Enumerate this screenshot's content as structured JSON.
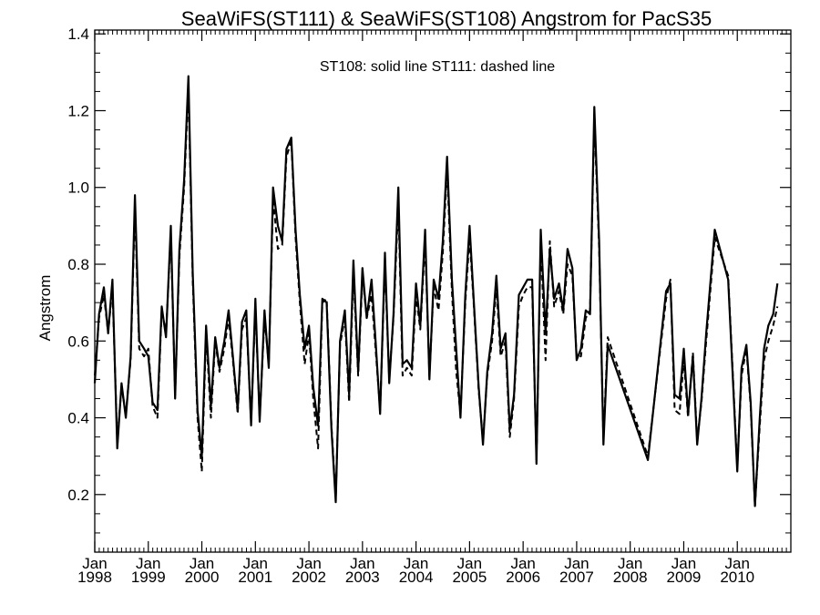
{
  "chart_data": {
    "type": "line",
    "title": "SeaWiFS(ST111) & SeaWiFS(ST108)  Angstrom for PacS35",
    "legend_text": "ST108: solid line   ST111: dashed line",
    "xlabel": "",
    "ylabel": "Angstrom",
    "ylim": [
      0.05,
      1.41
    ],
    "xlim": [
      1998.0,
      2011.0
    ],
    "yticks": [
      "0.2",
      "0.4",
      "0.6",
      "0.8",
      "1.0",
      "1.2",
      "1.4"
    ],
    "xticks": [
      {
        "x": 1998,
        "month": "Jan",
        "year": "1998"
      },
      {
        "x": 1999,
        "month": "Jan",
        "year": "1999"
      },
      {
        "x": 2000,
        "month": "Jan",
        "year": "2000"
      },
      {
        "x": 2001,
        "month": "Jan",
        "year": "2001"
      },
      {
        "x": 2002,
        "month": "Jan",
        "year": "2002"
      },
      {
        "x": 2003,
        "month": "Jan",
        "year": "2003"
      },
      {
        "x": 2004,
        "month": "Jan",
        "year": "2004"
      },
      {
        "x": 2005,
        "month": "Jan",
        "year": "2005"
      },
      {
        "x": 2006,
        "month": "Jan",
        "year": "2006"
      },
      {
        "x": 2007,
        "month": "Jan",
        "year": "2007"
      },
      {
        "x": 2008,
        "month": "Jan",
        "year": "2008"
      },
      {
        "x": 2009,
        "month": "Jan",
        "year": "2009"
      },
      {
        "x": 2010,
        "month": "Jan",
        "year": "2010"
      }
    ],
    "series": [
      {
        "name": "ST108",
        "style": "solid",
        "points": [
          [
            1998.0,
            0.49
          ],
          [
            1998.08,
            0.67
          ],
          [
            1998.17,
            0.74
          ],
          [
            1998.25,
            0.62
          ],
          [
            1998.33,
            0.76
          ],
          [
            1998.42,
            0.32
          ],
          [
            1998.5,
            0.49
          ],
          [
            1998.58,
            0.4
          ],
          [
            1998.67,
            0.56
          ],
          [
            1998.75,
            0.98
          ],
          [
            1998.83,
            0.6
          ],
          [
            1998.92,
            0.58
          ],
          [
            1999.0,
            0.56
          ],
          [
            1999.08,
            0.44
          ],
          [
            1999.17,
            0.42
          ],
          [
            1999.25,
            0.69
          ],
          [
            1999.33,
            0.61
          ],
          [
            1999.42,
            0.9
          ],
          [
            1999.5,
            0.45
          ],
          [
            1999.58,
            0.84
          ],
          [
            1999.67,
            1.02
          ],
          [
            1999.75,
            1.29
          ],
          [
            1999.83,
            0.78
          ],
          [
            1999.92,
            0.42
          ],
          [
            2000.0,
            0.3
          ],
          [
            2000.08,
            0.64
          ],
          [
            2000.17,
            0.43
          ],
          [
            2000.25,
            0.61
          ],
          [
            2000.33,
            0.53
          ],
          [
            2000.42,
            0.6
          ],
          [
            2000.5,
            0.68
          ],
          [
            2000.58,
            0.56
          ],
          [
            2000.67,
            0.42
          ],
          [
            2000.75,
            0.65
          ],
          [
            2000.83,
            0.68
          ],
          [
            2000.92,
            0.38
          ],
          [
            2001.0,
            0.71
          ],
          [
            2001.08,
            0.39
          ],
          [
            2001.17,
            0.68
          ],
          [
            2001.25,
            0.53
          ],
          [
            2001.33,
            1.0
          ],
          [
            2001.42,
            0.9
          ],
          [
            2001.5,
            0.86
          ],
          [
            2001.58,
            1.1
          ],
          [
            2001.67,
            1.13
          ],
          [
            2001.75,
            0.89
          ],
          [
            2001.83,
            0.72
          ],
          [
            2001.92,
            0.58
          ],
          [
            2002.0,
            0.64
          ],
          [
            2002.08,
            0.48
          ],
          [
            2002.17,
            0.38
          ],
          [
            2002.25,
            0.71
          ],
          [
            2002.33,
            0.7
          ],
          [
            2002.42,
            0.37
          ],
          [
            2002.5,
            0.18
          ],
          [
            2002.58,
            0.6
          ],
          [
            2002.67,
            0.68
          ],
          [
            2002.75,
            0.46
          ],
          [
            2002.83,
            0.81
          ],
          [
            2002.92,
            0.52
          ],
          [
            2003.0,
            0.79
          ],
          [
            2003.08,
            0.66
          ],
          [
            2003.17,
            0.76
          ],
          [
            2003.25,
            0.59
          ],
          [
            2003.33,
            0.41
          ],
          [
            2003.42,
            0.83
          ],
          [
            2003.5,
            0.49
          ],
          [
            2003.58,
            0.67
          ],
          [
            2003.67,
            1.0
          ],
          [
            2003.75,
            0.54
          ],
          [
            2003.83,
            0.55
          ],
          [
            2003.92,
            0.53
          ],
          [
            2004.0,
            0.75
          ],
          [
            2004.08,
            0.64
          ],
          [
            2004.17,
            0.89
          ],
          [
            2004.25,
            0.5
          ],
          [
            2004.33,
            0.76
          ],
          [
            2004.42,
            0.71
          ],
          [
            2004.5,
            0.86
          ],
          [
            2004.58,
            1.08
          ],
          [
            2004.67,
            0.76
          ],
          [
            2004.75,
            0.58
          ],
          [
            2004.83,
            0.4
          ],
          [
            2004.92,
            0.72
          ],
          [
            2005.0,
            0.9
          ],
          [
            2005.08,
            0.7
          ],
          [
            2005.17,
            0.48
          ],
          [
            2005.25,
            0.33
          ],
          [
            2005.33,
            0.52
          ],
          [
            2005.42,
            0.62
          ],
          [
            2005.5,
            0.77
          ],
          [
            2005.58,
            0.58
          ],
          [
            2005.67,
            0.62
          ],
          [
            2005.75,
            0.37
          ],
          [
            2005.83,
            0.46
          ],
          [
            2005.92,
            0.72
          ],
          [
            2006.0,
            0.74
          ],
          [
            2006.08,
            0.76
          ],
          [
            2006.17,
            0.76
          ],
          [
            2006.25,
            0.28
          ],
          [
            2006.33,
            0.89
          ],
          [
            2006.42,
            0.62
          ],
          [
            2006.5,
            0.84
          ],
          [
            2006.58,
            0.71
          ],
          [
            2006.67,
            0.75
          ],
          [
            2006.75,
            0.68
          ],
          [
            2006.83,
            0.84
          ],
          [
            2006.92,
            0.79
          ],
          [
            2007.0,
            0.55
          ],
          [
            2007.08,
            0.58
          ],
          [
            2007.17,
            0.68
          ],
          [
            2007.25,
            0.67
          ],
          [
            2007.33,
            1.21
          ],
          [
            2007.42,
            0.86
          ],
          [
            2007.5,
            0.33
          ],
          [
            2007.58,
            0.59
          ],
          [
            2008.33,
            0.29
          ],
          [
            2008.67,
            0.73
          ],
          [
            2008.75,
            0.75
          ],
          [
            2008.83,
            0.46
          ],
          [
            2008.92,
            0.45
          ],
          [
            2009.0,
            0.58
          ],
          [
            2009.08,
            0.41
          ],
          [
            2009.17,
            0.56
          ],
          [
            2009.25,
            0.33
          ],
          [
            2009.33,
            0.45
          ],
          [
            2009.42,
            0.62
          ],
          [
            2009.58,
            0.89
          ],
          [
            2009.83,
            0.76
          ],
          [
            2010.0,
            0.26
          ],
          [
            2010.08,
            0.53
          ],
          [
            2010.17,
            0.59
          ],
          [
            2010.25,
            0.44
          ],
          [
            2010.33,
            0.17
          ],
          [
            2010.42,
            0.4
          ],
          [
            2010.5,
            0.58
          ],
          [
            2010.58,
            0.64
          ],
          [
            2010.67,
            0.67
          ],
          [
            2010.75,
            0.75
          ]
        ]
      },
      {
        "name": "ST111",
        "style": "dashed",
        "points": [
          [
            1998.0,
            0.51
          ],
          [
            1998.08,
            0.66
          ],
          [
            1998.17,
            0.72
          ],
          [
            1998.25,
            0.62
          ],
          [
            1998.33,
            0.74
          ],
          [
            1998.42,
            0.34
          ],
          [
            1998.5,
            0.48
          ],
          [
            1998.58,
            0.41
          ],
          [
            1998.67,
            0.55
          ],
          [
            1998.75,
            0.95
          ],
          [
            1998.83,
            0.58
          ],
          [
            1998.92,
            0.56
          ],
          [
            1999.0,
            0.58
          ],
          [
            1999.08,
            0.43
          ],
          [
            1999.17,
            0.4
          ],
          [
            1999.25,
            0.68
          ],
          [
            1999.33,
            0.62
          ],
          [
            1999.42,
            0.88
          ],
          [
            1999.5,
            0.46
          ],
          [
            1999.58,
            0.82
          ],
          [
            1999.67,
            1.0
          ],
          [
            1999.75,
            1.26
          ],
          [
            1999.83,
            0.76
          ],
          [
            1999.92,
            0.4
          ],
          [
            2000.0,
            0.26
          ],
          [
            2000.08,
            0.62
          ],
          [
            2000.17,
            0.4
          ],
          [
            2000.25,
            0.6
          ],
          [
            2000.33,
            0.52
          ],
          [
            2000.42,
            0.58
          ],
          [
            2000.5,
            0.66
          ],
          [
            2000.58,
            0.55
          ],
          [
            2000.67,
            0.41
          ],
          [
            2000.75,
            0.63
          ],
          [
            2000.83,
            0.66
          ],
          [
            2000.92,
            0.39
          ],
          [
            2001.0,
            0.69
          ],
          [
            2001.08,
            0.4
          ],
          [
            2001.17,
            0.66
          ],
          [
            2001.25,
            0.54
          ],
          [
            2001.33,
            0.97
          ],
          [
            2001.42,
            0.84
          ],
          [
            2001.5,
            0.85
          ],
          [
            2001.58,
            1.08
          ],
          [
            2001.67,
            1.12
          ],
          [
            2001.75,
            0.87
          ],
          [
            2001.83,
            0.7
          ],
          [
            2001.92,
            0.54
          ],
          [
            2002.0,
            0.62
          ],
          [
            2002.08,
            0.45
          ],
          [
            2002.17,
            0.32
          ],
          [
            2002.25,
            0.7
          ],
          [
            2002.33,
            0.71
          ],
          [
            2002.42,
            0.38
          ],
          [
            2002.5,
            0.19
          ],
          [
            2002.58,
            0.59
          ],
          [
            2002.67,
            0.66
          ],
          [
            2002.75,
            0.44
          ],
          [
            2002.83,
            0.78
          ],
          [
            2002.92,
            0.51
          ],
          [
            2003.0,
            0.77
          ],
          [
            2003.08,
            0.66
          ],
          [
            2003.17,
            0.72
          ],
          [
            2003.25,
            0.57
          ],
          [
            2003.33,
            0.42
          ],
          [
            2003.42,
            0.8
          ],
          [
            2003.5,
            0.5
          ],
          [
            2003.58,
            0.66
          ],
          [
            2003.67,
            0.96
          ],
          [
            2003.75,
            0.51
          ],
          [
            2003.83,
            0.53
          ],
          [
            2003.92,
            0.51
          ],
          [
            2004.0,
            0.72
          ],
          [
            2004.08,
            0.63
          ],
          [
            2004.17,
            0.86
          ],
          [
            2004.25,
            0.51
          ],
          [
            2004.33,
            0.74
          ],
          [
            2004.42,
            0.68
          ],
          [
            2004.5,
            0.83
          ],
          [
            2004.58,
            1.05
          ],
          [
            2004.67,
            0.73
          ],
          [
            2004.75,
            0.52
          ],
          [
            2004.83,
            0.41
          ],
          [
            2004.92,
            0.7
          ],
          [
            2005.0,
            0.87
          ],
          [
            2005.08,
            0.69
          ],
          [
            2005.17,
            0.47
          ],
          [
            2005.25,
            0.34
          ],
          [
            2005.33,
            0.51
          ],
          [
            2005.42,
            0.6
          ],
          [
            2005.5,
            0.74
          ],
          [
            2005.58,
            0.56
          ],
          [
            2005.67,
            0.6
          ],
          [
            2005.75,
            0.35
          ],
          [
            2005.83,
            0.45
          ],
          [
            2005.92,
            0.69
          ],
          [
            2006.0,
            0.72
          ],
          [
            2006.08,
            0.74
          ],
          [
            2006.17,
            0.74
          ],
          [
            2006.25,
            0.29
          ],
          [
            2006.33,
            0.86
          ],
          [
            2006.42,
            0.55
          ],
          [
            2006.5,
            0.86
          ],
          [
            2006.58,
            0.69
          ],
          [
            2006.67,
            0.73
          ],
          [
            2006.75,
            0.67
          ],
          [
            2006.83,
            0.8
          ],
          [
            2006.92,
            0.77
          ],
          [
            2007.0,
            0.56
          ],
          [
            2007.08,
            0.56
          ],
          [
            2007.17,
            0.66
          ],
          [
            2007.25,
            0.68
          ],
          [
            2007.33,
            1.18
          ],
          [
            2007.42,
            0.84
          ],
          [
            2007.5,
            0.34
          ],
          [
            2007.58,
            0.61
          ],
          [
            2008.33,
            0.3
          ],
          [
            2008.67,
            0.71
          ],
          [
            2008.75,
            0.76
          ],
          [
            2008.83,
            0.42
          ],
          [
            2008.92,
            0.41
          ],
          [
            2009.0,
            0.55
          ],
          [
            2009.08,
            0.4
          ],
          [
            2009.17,
            0.57
          ],
          [
            2009.25,
            0.34
          ],
          [
            2009.33,
            0.44
          ],
          [
            2009.42,
            0.6
          ],
          [
            2009.58,
            0.87
          ],
          [
            2009.83,
            0.77
          ],
          [
            2010.0,
            0.27
          ],
          [
            2010.08,
            0.51
          ],
          [
            2010.17,
            0.58
          ],
          [
            2010.25,
            0.43
          ],
          [
            2010.33,
            0.17
          ],
          [
            2010.42,
            0.38
          ],
          [
            2010.5,
            0.55
          ],
          [
            2010.58,
            0.6
          ],
          [
            2010.67,
            0.64
          ],
          [
            2010.75,
            0.69
          ]
        ]
      }
    ]
  }
}
